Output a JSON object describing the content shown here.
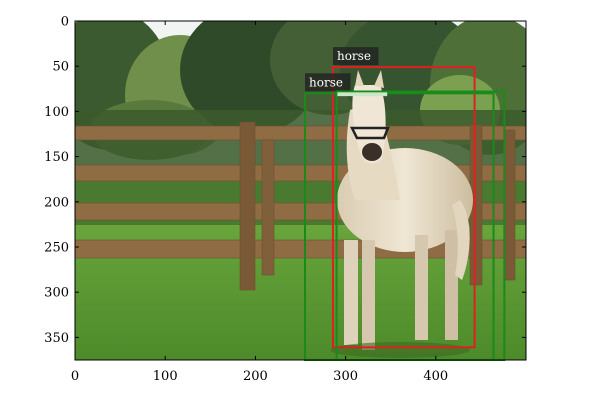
{
  "image": {
    "description_colors": {
      "sky": "#e8eef0",
      "trees": "#3f5d34",
      "fence": "#8a6a42",
      "grass": "#5e9a36",
      "horse": "#e8dcc6"
    }
  },
  "axes": {
    "x_range": [
      0,
      500
    ],
    "y_range": [
      375,
      0
    ],
    "x_ticks": [
      "0",
      "100",
      "200",
      "300",
      "400"
    ],
    "x_tick_values": [
      0,
      100,
      200,
      300,
      400
    ],
    "y_ticks": [
      "0",
      "50",
      "100",
      "150",
      "200",
      "250",
      "300",
      "350"
    ],
    "y_tick_values": [
      0,
      50,
      100,
      150,
      200,
      250,
      300,
      350
    ]
  },
  "boxes": [
    {
      "label": "horse",
      "color": "#e02020",
      "xmin": 286,
      "ymin": 51,
      "xmax": 443,
      "ymax": 361,
      "show_label": true
    },
    {
      "label": "horse",
      "color": "#1a8a1a",
      "xmin": 255,
      "ymin": 80,
      "xmax": 464,
      "ymax": 375,
      "show_label": true
    },
    {
      "label": "",
      "color": "#1a8a1a",
      "xmin": 290,
      "ymin": 78,
      "xmax": 476,
      "ymax": 375,
      "show_label": false
    },
    {
      "label": "",
      "color": "#c8e8c8",
      "xmin": 292,
      "ymin": 80,
      "xmax": 345,
      "ymax": 82,
      "show_label": false
    }
  ],
  "overlap_label": "horse"
}
